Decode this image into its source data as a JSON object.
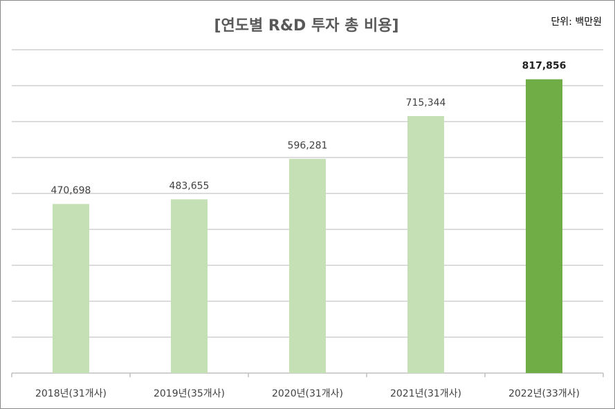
{
  "chart_data": {
    "type": "bar",
    "title": "[연도별 R&D 투자 총 비용]",
    "unit_label": "단위: 백만원",
    "categories": [
      "2018년(31개사)",
      "2019년(35개사)",
      "2020년(31개사)",
      "2021년(31개사)",
      "2022년(33개사)"
    ],
    "values": [
      470698,
      483655,
      596281,
      715344,
      817856
    ],
    "value_labels": [
      "470,698",
      "483,655",
      "596,281",
      "715,344",
      "817,856"
    ],
    "colors": [
      "#c5e0b4",
      "#c5e0b4",
      "#c5e0b4",
      "#c5e0b4",
      "#70ad47"
    ],
    "ylim": [
      0,
      900000
    ],
    "yticks": [
      0,
      100000,
      200000,
      300000,
      400000,
      500000,
      600000,
      700000,
      800000,
      900000
    ],
    "grid": true
  }
}
